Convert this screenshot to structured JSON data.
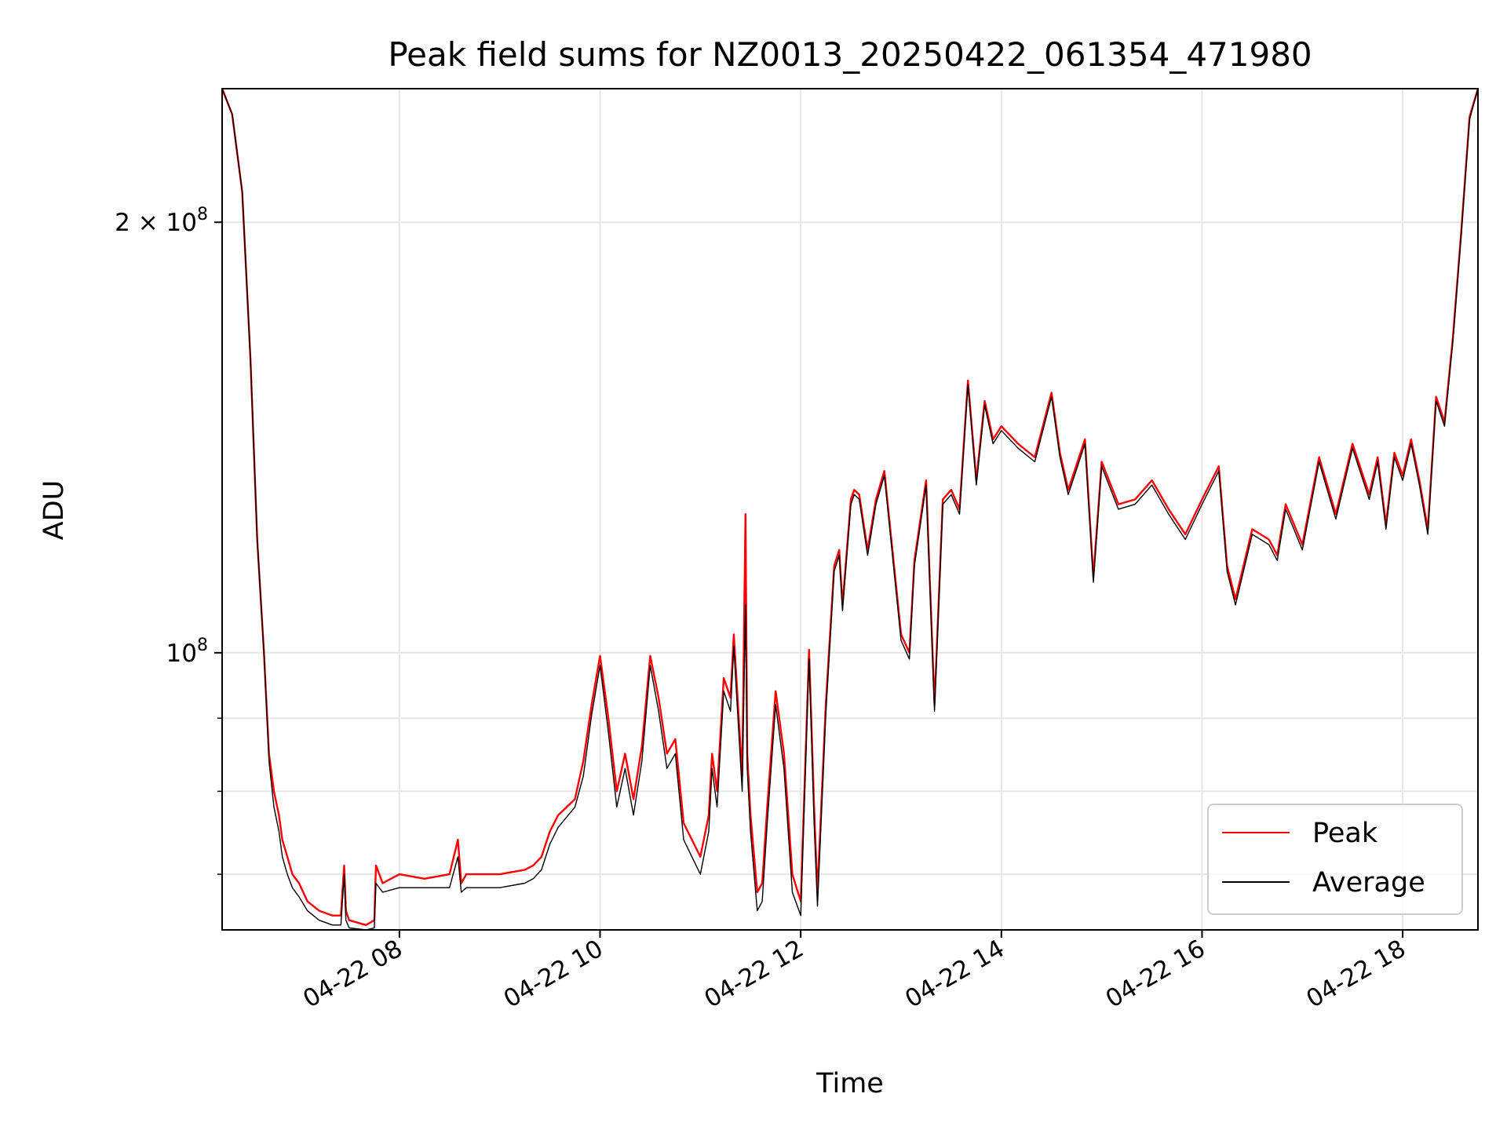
{
  "chart_data": {
    "type": "line",
    "title": "Peak field sums for NZ0013_20250422_061354_471980",
    "xlabel": "Time",
    "ylabel": "ADU",
    "y_scale": "log",
    "ylim": [
      64000000,
      248000000
    ],
    "xlim": [
      "2025-04-22 06:14",
      "2025-04-22 18:45"
    ],
    "grid": true,
    "legend_position": "lower right",
    "x_ticks": [
      {
        "value": "2025-04-22 08:00",
        "label": "04-22 08"
      },
      {
        "value": "2025-04-22 10:00",
        "label": "04-22 10"
      },
      {
        "value": "2025-04-22 12:00",
        "label": "04-22 12"
      },
      {
        "value": "2025-04-22 14:00",
        "label": "04-22 14"
      },
      {
        "value": "2025-04-22 16:00",
        "label": "04-22 16"
      },
      {
        "value": "2025-04-22 18:00",
        "label": "04-22 18"
      }
    ],
    "y_major_ticks": [
      {
        "value": 100000000,
        "mantissa": "",
        "base": "10",
        "exp": "8"
      },
      {
        "value": 200000000,
        "mantissa": "2 × ",
        "base": "10",
        "exp": "8"
      }
    ],
    "y_minor_ticks": [
      70000000,
      80000000,
      90000000
    ],
    "series": [
      {
        "name": "Peak",
        "color": "#ff0000",
        "x": [
          "2025-04-22 06:14",
          "2025-04-22 06:20",
          "2025-04-22 06:26",
          "2025-04-22 06:31",
          "2025-04-22 06:35",
          "2025-04-22 06:39",
          "2025-04-22 06:42",
          "2025-04-22 06:45",
          "2025-04-22 06:48",
          "2025-04-22 06:50",
          "2025-04-22 06:53",
          "2025-04-22 06:56",
          "2025-04-22 07:00",
          "2025-04-22 07:05",
          "2025-04-22 07:12",
          "2025-04-22 07:20",
          "2025-04-22 07:25",
          "2025-04-22 07:27",
          "2025-04-22 07:28",
          "2025-04-22 07:30",
          "2025-04-22 07:40",
          "2025-04-22 07:45",
          "2025-04-22 07:46",
          "2025-04-22 07:50",
          "2025-04-22 08:00",
          "2025-04-22 08:15",
          "2025-04-22 08:30",
          "2025-04-22 08:35",
          "2025-04-22 08:37",
          "2025-04-22 08:40",
          "2025-04-22 09:00",
          "2025-04-22 09:15",
          "2025-04-22 09:20",
          "2025-04-22 09:25",
          "2025-04-22 09:30",
          "2025-04-22 09:35",
          "2025-04-22 09:45",
          "2025-04-22 09:50",
          "2025-04-22 09:55",
          "2025-04-22 10:00",
          "2025-04-22 10:05",
          "2025-04-22 10:10",
          "2025-04-22 10:15",
          "2025-04-22 10:20",
          "2025-04-22 10:25",
          "2025-04-22 10:30",
          "2025-04-22 10:35",
          "2025-04-22 10:40",
          "2025-04-22 10:45",
          "2025-04-22 10:50",
          "2025-04-22 11:00",
          "2025-04-22 11:05",
          "2025-04-22 11:07",
          "2025-04-22 11:10",
          "2025-04-22 11:14",
          "2025-04-22 11:18",
          "2025-04-22 11:20",
          "2025-04-22 11:25",
          "2025-04-22 11:27",
          "2025-04-22 11:28",
          "2025-04-22 11:30",
          "2025-04-22 11:34",
          "2025-04-22 11:37",
          "2025-04-22 11:40",
          "2025-04-22 11:45",
          "2025-04-22 11:50",
          "2025-04-22 11:55",
          "2025-04-22 12:00",
          "2025-04-22 12:05",
          "2025-04-22 12:08",
          "2025-04-22 12:10",
          "2025-04-22 12:15",
          "2025-04-22 12:20",
          "2025-04-22 12:23",
          "2025-04-22 12:25",
          "2025-04-22 12:30",
          "2025-04-22 12:32",
          "2025-04-22 12:35",
          "2025-04-22 12:40",
          "2025-04-22 12:45",
          "2025-04-22 12:50",
          "2025-04-22 13:00",
          "2025-04-22 13:05",
          "2025-04-22 13:08",
          "2025-04-22 13:15",
          "2025-04-22 13:20",
          "2025-04-22 13:25",
          "2025-04-22 13:30",
          "2025-04-22 13:35",
          "2025-04-22 13:40",
          "2025-04-22 13:45",
          "2025-04-22 13:50",
          "2025-04-22 13:55",
          "2025-04-22 14:00",
          "2025-04-22 14:10",
          "2025-04-22 14:20",
          "2025-04-22 14:30",
          "2025-04-22 14:35",
          "2025-04-22 14:40",
          "2025-04-22 14:50",
          "2025-04-22 14:55",
          "2025-04-22 15:00",
          "2025-04-22 15:10",
          "2025-04-22 15:20",
          "2025-04-22 15:30",
          "2025-04-22 15:40",
          "2025-04-22 15:50",
          "2025-04-22 16:00",
          "2025-04-22 16:10",
          "2025-04-22 16:15",
          "2025-04-22 16:20",
          "2025-04-22 16:30",
          "2025-04-22 16:40",
          "2025-04-22 16:45",
          "2025-04-22 16:50",
          "2025-04-22 17:00",
          "2025-04-22 17:10",
          "2025-04-22 17:20",
          "2025-04-22 17:30",
          "2025-04-22 17:40",
          "2025-04-22 17:45",
          "2025-04-22 17:50",
          "2025-04-22 17:55",
          "2025-04-22 18:00",
          "2025-04-22 18:05",
          "2025-04-22 18:10",
          "2025-04-22 18:15",
          "2025-04-22 18:20",
          "2025-04-22 18:25",
          "2025-04-22 18:30",
          "2025-04-22 18:35",
          "2025-04-22 18:40",
          "2025-04-22 18:45"
        ],
        "y": [
          248000000,
          238000000,
          210000000,
          160000000,
          120000000,
          100000000,
          85000000,
          80000000,
          77000000,
          74000000,
          72000000,
          70000000,
          69000000,
          67000000,
          66000000,
          65500000,
          65500000,
          71000000,
          66000000,
          65000000,
          64500000,
          65000000,
          71000000,
          69000000,
          70000000,
          69500000,
          70000000,
          74000000,
          69000000,
          70000000,
          70000000,
          70500000,
          71000000,
          72000000,
          75000000,
          77000000,
          79000000,
          84000000,
          92000000,
          99500000,
          90000000,
          80000000,
          85000000,
          79000000,
          86000000,
          99500000,
          93000000,
          85000000,
          87000000,
          76000000,
          72000000,
          77000000,
          85000000,
          80000000,
          96000000,
          93000000,
          103000000,
          82000000,
          125000000,
          85000000,
          77000000,
          68000000,
          69000000,
          78000000,
          94000000,
          85000000,
          70000000,
          67000000,
          100500000,
          78000000,
          68000000,
          92000000,
          115000000,
          118000000,
          108000000,
          128000000,
          130000000,
          129000000,
          118000000,
          128000000,
          134000000,
          103000000,
          100000000,
          116000000,
          132000000,
          92000000,
          128000000,
          130000000,
          126000000,
          155000000,
          132000000,
          150000000,
          141000000,
          144000000,
          140000000,
          137000000,
          152000000,
          138000000,
          130000000,
          141000000,
          113000000,
          136000000,
          127000000,
          128000000,
          132000000,
          126000000,
          121000000,
          128000000,
          135000000,
          115000000,
          109000000,
          122000000,
          120000000,
          117000000,
          127000000,
          119000000,
          137000000,
          125000000,
          140000000,
          129000000,
          137000000,
          123000000,
          138000000,
          133000000,
          141000000,
          132000000,
          122000000,
          151000000,
          145000000,
          166000000,
          197000000,
          237000000,
          248000000
        ]
      },
      {
        "name": "Average",
        "color": "#000000",
        "x": [
          "2025-04-22 06:14",
          "2025-04-22 06:20",
          "2025-04-22 06:26",
          "2025-04-22 06:31",
          "2025-04-22 06:35",
          "2025-04-22 06:39",
          "2025-04-22 06:42",
          "2025-04-22 06:45",
          "2025-04-22 06:48",
          "2025-04-22 06:50",
          "2025-04-22 06:53",
          "2025-04-22 06:56",
          "2025-04-22 07:00",
          "2025-04-22 07:05",
          "2025-04-22 07:12",
          "2025-04-22 07:20",
          "2025-04-22 07:25",
          "2025-04-22 07:27",
          "2025-04-22 07:28",
          "2025-04-22 07:30",
          "2025-04-22 07:40",
          "2025-04-22 07:45",
          "2025-04-22 07:46",
          "2025-04-22 07:50",
          "2025-04-22 08:00",
          "2025-04-22 08:15",
          "2025-04-22 08:30",
          "2025-04-22 08:35",
          "2025-04-22 08:37",
          "2025-04-22 08:40",
          "2025-04-22 09:00",
          "2025-04-22 09:15",
          "2025-04-22 09:20",
          "2025-04-22 09:25",
          "2025-04-22 09:30",
          "2025-04-22 09:35",
          "2025-04-22 09:45",
          "2025-04-22 09:50",
          "2025-04-22 09:55",
          "2025-04-22 10:00",
          "2025-04-22 10:05",
          "2025-04-22 10:10",
          "2025-04-22 10:15",
          "2025-04-22 10:20",
          "2025-04-22 10:25",
          "2025-04-22 10:30",
          "2025-04-22 10:35",
          "2025-04-22 10:40",
          "2025-04-22 10:45",
          "2025-04-22 10:50",
          "2025-04-22 11:00",
          "2025-04-22 11:05",
          "2025-04-22 11:07",
          "2025-04-22 11:10",
          "2025-04-22 11:14",
          "2025-04-22 11:18",
          "2025-04-22 11:20",
          "2025-04-22 11:25",
          "2025-04-22 11:27",
          "2025-04-22 11:28",
          "2025-04-22 11:30",
          "2025-04-22 11:34",
          "2025-04-22 11:37",
          "2025-04-22 11:40",
          "2025-04-22 11:45",
          "2025-04-22 11:50",
          "2025-04-22 11:55",
          "2025-04-22 12:00",
          "2025-04-22 12:05",
          "2025-04-22 12:08",
          "2025-04-22 12:10",
          "2025-04-22 12:15",
          "2025-04-22 12:20",
          "2025-04-22 12:23",
          "2025-04-22 12:25",
          "2025-04-22 12:30",
          "2025-04-22 12:32",
          "2025-04-22 12:35",
          "2025-04-22 12:40",
          "2025-04-22 12:45",
          "2025-04-22 12:50",
          "2025-04-22 13:00",
          "2025-04-22 13:05",
          "2025-04-22 13:08",
          "2025-04-22 13:15",
          "2025-04-22 13:20",
          "2025-04-22 13:25",
          "2025-04-22 13:30",
          "2025-04-22 13:35",
          "2025-04-22 13:40",
          "2025-04-22 13:45",
          "2025-04-22 13:50",
          "2025-04-22 13:55",
          "2025-04-22 14:00",
          "2025-04-22 14:10",
          "2025-04-22 14:20",
          "2025-04-22 14:30",
          "2025-04-22 14:35",
          "2025-04-22 14:40",
          "2025-04-22 14:50",
          "2025-04-22 14:55",
          "2025-04-22 15:00",
          "2025-04-22 15:10",
          "2025-04-22 15:20",
          "2025-04-22 15:30",
          "2025-04-22 15:40",
          "2025-04-22 15:50",
          "2025-04-22 16:00",
          "2025-04-22 16:10",
          "2025-04-22 16:15",
          "2025-04-22 16:20",
          "2025-04-22 16:30",
          "2025-04-22 16:40",
          "2025-04-22 16:45",
          "2025-04-22 16:50",
          "2025-04-22 17:00",
          "2025-04-22 17:10",
          "2025-04-22 17:20",
          "2025-04-22 17:30",
          "2025-04-22 17:40",
          "2025-04-22 17:45",
          "2025-04-22 17:50",
          "2025-04-22 17:55",
          "2025-04-22 18:00",
          "2025-04-22 18:05",
          "2025-04-22 18:10",
          "2025-04-22 18:15",
          "2025-04-22 18:20",
          "2025-04-22 18:25",
          "2025-04-22 18:30",
          "2025-04-22 18:35",
          "2025-04-22 18:40",
          "2025-04-22 18:45"
        ],
        "y": [
          248000000,
          238000000,
          210000000,
          160000000,
          120000000,
          100000000,
          84000000,
          78000000,
          75000000,
          72000000,
          70000000,
          68500000,
          67500000,
          66000000,
          65000000,
          64500000,
          64500000,
          70000000,
          65000000,
          64200000,
          64000000,
          64200000,
          69000000,
          68000000,
          68500000,
          68500000,
          68500000,
          72000000,
          68000000,
          68500000,
          68500000,
          69000000,
          69500000,
          70500000,
          73500000,
          75500000,
          78000000,
          82000000,
          90500000,
          98000000,
          88000000,
          78000000,
          83000000,
          77000000,
          84000000,
          98000000,
          91000000,
          83000000,
          85000000,
          74000000,
          70000000,
          75000000,
          83000000,
          78000000,
          94000000,
          91000000,
          101000000,
          80000000,
          108000000,
          83000000,
          75000000,
          66000000,
          67000000,
          76000000,
          92000000,
          83000000,
          68000000,
          65500000,
          99000000,
          76000000,
          66500000,
          90500000,
          114000000,
          117000000,
          107000000,
          127000000,
          129000000,
          128000000,
          117000000,
          127000000,
          133000000,
          102000000,
          99000000,
          115000000,
          131000000,
          91000000,
          127000000,
          129000000,
          125000000,
          154000000,
          131000000,
          149000000,
          140000000,
          143000000,
          139000000,
          136000000,
          151000000,
          137000000,
          129000000,
          140000000,
          112000000,
          135000000,
          126000000,
          127000000,
          131000000,
          125000000,
          120000000,
          127000000,
          134000000,
          114000000,
          108000000,
          121000000,
          119000000,
          116000000,
          126000000,
          118000000,
          136000000,
          124000000,
          139000000,
          128000000,
          136000000,
          122000000,
          137000000,
          132000000,
          140000000,
          131000000,
          121000000,
          150000000,
          144000000,
          165000000,
          196000000,
          236000000,
          248000000
        ]
      }
    ]
  }
}
